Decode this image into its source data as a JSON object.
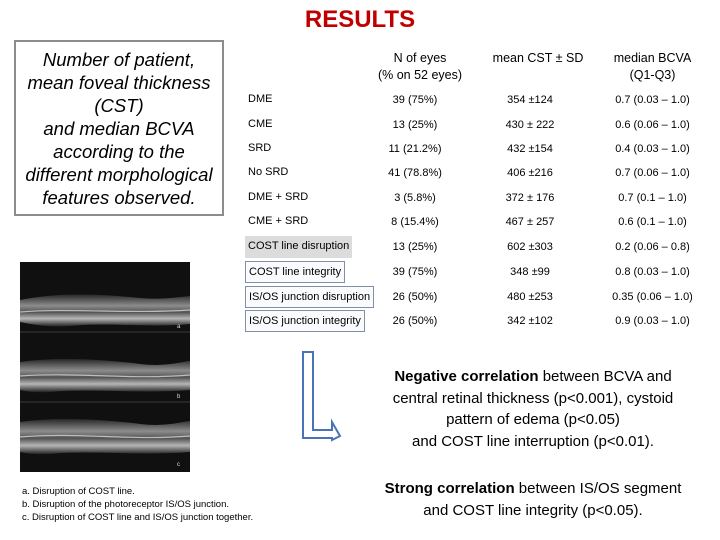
{
  "title": "RESULTS",
  "intro": {
    "lines": [
      "Number of patient,",
      "mean foveal thickness",
      "(CST)",
      "and median BCVA",
      "according to the",
      "different morphological",
      "features observed."
    ]
  },
  "table": {
    "headers": {
      "n_eyes": [
        "N of eyes",
        "(% on 52 eyes)"
      ],
      "cst": "mean CST ± SD",
      "bcva": [
        "median BCVA",
        "(Q1-Q3)"
      ]
    },
    "rows": [
      {
        "label": "DME",
        "n": "39 (75%)",
        "cst": "354 ±124",
        "bcva": "0.7 (0.03 – 1.0)"
      },
      {
        "label": "CME",
        "n": "13 (25%)",
        "cst": "430 ± 222",
        "bcva": "0.6 (0.06 – 1.0)"
      },
      {
        "label": "SRD",
        "n": "11 (21.2%)",
        "cst": "432 ±154",
        "bcva": "0.4 (0.03 – 1.0)"
      },
      {
        "label": "No SRD",
        "n": "41 (78.8%)",
        "cst": "406 ±216",
        "bcva": "0.7 (0.06 – 1.0)"
      },
      {
        "label": "DME + SRD",
        "n": "3 (5.8%)",
        "cst": "372 ± 176",
        "bcva": "0.7 (0.1 – 1.0)"
      },
      {
        "label": "CME + SRD",
        "n": "8 (15.4%)",
        "cst": "467 ± 257",
        "bcva": "0.6 (0.1 – 1.0)"
      },
      {
        "label": "COST line disruption",
        "n": "13 (25%)",
        "cst": "602 ±303",
        "bcva": "0.2 (0.06 – 0.8)"
      },
      {
        "label": "COST line integrity",
        "n": "39 (75%)",
        "cst": "348 ±99",
        "bcva": "0.8 (0.03 – 1.0)"
      },
      {
        "label": "IS/OS junction disruption",
        "n": "26 (50%)",
        "cst": "480 ±253",
        "bcva": "0.35 (0.06 – 1.0)"
      },
      {
        "label": "IS/OS junction integrity",
        "n": "26 (50%)",
        "cst": "342 ±102",
        "bcva": "0.9 (0.03 – 1.0)"
      }
    ]
  },
  "figure": {
    "panel_labels": [
      "a",
      "b",
      "c"
    ],
    "captions": [
      "a. Disruption of COST line.",
      "b. Disruption of the photoreceptor IS/OS junction.",
      "c.  Disruption of COST line and IS/OS junction together."
    ]
  },
  "conclusions": {
    "negative": {
      "bold": "Negative correlation",
      "rest_line1": " between BCVA and",
      "line2": "central retinal thickness (p<0.001), cystoid",
      "line3": "pattern of edema (p<0.05)",
      "line4": "and COST line interruption (p<0.01)."
    },
    "strong": {
      "bold": "Strong correlation",
      "rest_line1": " between IS/OS segment",
      "line2": "and COST line integrity (p<0.05)."
    }
  },
  "colors": {
    "title": "#c00000",
    "bracket": "#4a74b8",
    "row_shade": "#dcdcdc",
    "box_border": "#7f8fa6"
  }
}
